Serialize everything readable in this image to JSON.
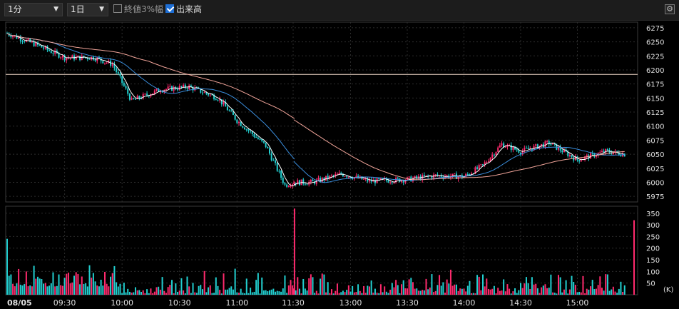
{
  "toolbar": {
    "interval_value": "1分",
    "range_value": "1日",
    "closing_pct_label": "終値3%幅",
    "closing_pct_checked": false,
    "volume_label": "出来高",
    "volume_checked": true,
    "settings_icon": "gear-icon"
  },
  "volume_unit": "(K)",
  "colors": {
    "up": "#ff2a6d",
    "down": "#22cfd0",
    "ma_short": "#ffffff",
    "ma_mid": "#3a8ddc",
    "ma_long": "#f2a59a",
    "ref_line": "#f0d8c8"
  },
  "chart_data": [
    {
      "type": "candlestick",
      "title": "",
      "x_tick_labels": [
        "08/05",
        "09:30",
        "10:00",
        "10:30",
        "11:00",
        "11:30",
        "13:00",
        "13:30",
        "14:00",
        "14:30",
        "15:00"
      ],
      "y_ticks": [
        5975,
        6000,
        6025,
        6050,
        6075,
        6100,
        6125,
        6150,
        6175,
        6200,
        6225,
        6250,
        6275
      ],
      "ylim": [
        5965,
        6285
      ],
      "reference_line": 6192,
      "grid": true,
      "series_approx": [
        {
          "time": "09:00",
          "close": 6265
        },
        {
          "time": "09:15",
          "close": 6245
        },
        {
          "time": "09:30",
          "close": 6222
        },
        {
          "time": "09:45",
          "close": 6222
        },
        {
          "time": "09:55",
          "close": 6210
        },
        {
          "time": "10:05",
          "close": 6145
        },
        {
          "time": "10:20",
          "close": 6165
        },
        {
          "time": "10:35",
          "close": 6170
        },
        {
          "time": "10:50",
          "close": 6150
        },
        {
          "time": "11:00",
          "close": 6110
        },
        {
          "time": "11:15",
          "close": 6065
        },
        {
          "time": "11:25",
          "close": 5995
        },
        {
          "time": "11:30",
          "close": 6000
        },
        {
          "time": "12:40",
          "close": 6000
        },
        {
          "time": "12:55",
          "close": 6015
        },
        {
          "time": "13:10",
          "close": 6002
        },
        {
          "time": "13:30",
          "close": 6005
        },
        {
          "time": "13:45",
          "close": 6012
        },
        {
          "time": "14:00",
          "close": 6010
        },
        {
          "time": "14:10",
          "close": 6030
        },
        {
          "time": "14:20",
          "close": 6068
        },
        {
          "time": "14:30",
          "close": 6055
        },
        {
          "time": "14:45",
          "close": 6070
        },
        {
          "time": "15:00",
          "close": 6040
        },
        {
          "time": "15:15",
          "close": 6055
        },
        {
          "time": "15:25",
          "close": 6050
        }
      ]
    },
    {
      "type": "bar",
      "title": "",
      "y_ticks": [
        50,
        100,
        150,
        200,
        250,
        300,
        350
      ],
      "ylim": [
        0,
        380
      ],
      "ylabel": "(K)",
      "spikes": [
        {
          "time": "09:00",
          "value": 240
        },
        {
          "time": "11:30",
          "value": 370
        },
        {
          "time": "15:30",
          "value": 320
        }
      ]
    }
  ]
}
